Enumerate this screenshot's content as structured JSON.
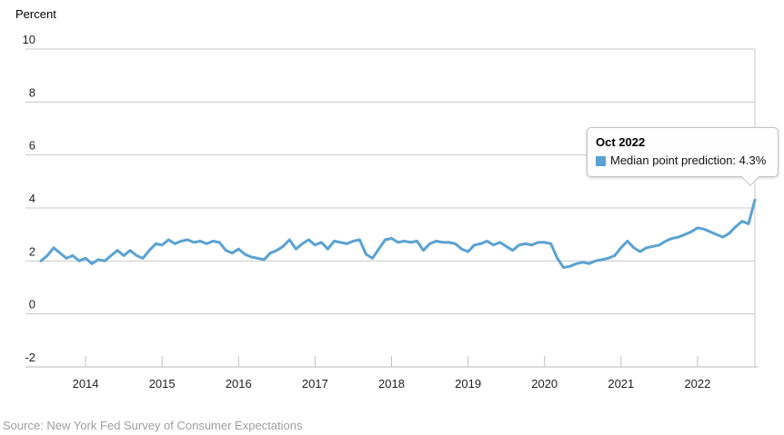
{
  "y_axis_title": "Percent",
  "source_text": "Source: New York Fed Survey of Consumer Expectations",
  "tooltip": {
    "title": "Oct 2022",
    "text": "Median point prediction: 4.3%",
    "series_label": "Median point prediction",
    "value": "4.3%",
    "marker_color": "#5AA2D3"
  },
  "colors": {
    "line": "#5AA2D3",
    "grid": "#c9c9c9",
    "axis": "#b5b5b5",
    "tick": "#c2c2c2",
    "label_text": "#1f1f1f",
    "source_text": "#9e9e9e",
    "tooltip_border": "#c3c3c3",
    "tooltip_bg": "#fefefe"
  },
  "chart_data": {
    "type": "line",
    "title": "",
    "ylabel": "Percent",
    "grid": "horizontal",
    "legend_position": "tooltip",
    "y_axis": {
      "min": -2,
      "max": 10,
      "ticks": [
        10,
        8,
        6,
        4,
        2,
        0,
        -2
      ]
    },
    "x_axis": {
      "tick_labels": [
        "2014",
        "2015",
        "2016",
        "2017",
        "2018",
        "2019",
        "2020",
        "2021",
        "2022"
      ],
      "start": "Jun 2013",
      "end": "Oct 2022",
      "frequency": "monthly"
    },
    "series": [
      {
        "name": "Median point prediction",
        "color": "#5AA2D3",
        "highlight": {
          "month": "Oct 2022",
          "value": 4.3
        },
        "values": [
          2.0,
          2.2,
          2.5,
          2.3,
          2.1,
          2.2,
          2.0,
          2.1,
          1.9,
          2.05,
          2.0,
          2.2,
          2.4,
          2.2,
          2.4,
          2.2,
          2.1,
          2.4,
          2.65,
          2.6,
          2.8,
          2.65,
          2.75,
          2.8,
          2.7,
          2.75,
          2.65,
          2.75,
          2.7,
          2.4,
          2.3,
          2.45,
          2.25,
          2.15,
          2.1,
          2.05,
          2.3,
          2.4,
          2.55,
          2.8,
          2.45,
          2.65,
          2.8,
          2.6,
          2.7,
          2.45,
          2.75,
          2.7,
          2.65,
          2.75,
          2.8,
          2.25,
          2.1,
          2.45,
          2.8,
          2.85,
          2.7,
          2.75,
          2.7,
          2.75,
          2.4,
          2.65,
          2.75,
          2.7,
          2.7,
          2.65,
          2.45,
          2.35,
          2.6,
          2.65,
          2.75,
          2.6,
          2.7,
          2.55,
          2.4,
          2.6,
          2.65,
          2.6,
          2.7,
          2.7,
          2.65,
          2.1,
          1.75,
          1.8,
          1.9,
          1.95,
          1.9,
          2.0,
          2.05,
          2.1,
          2.2,
          2.5,
          2.75,
          2.5,
          2.35,
          2.5,
          2.55,
          2.6,
          2.75,
          2.85,
          2.9,
          3.0,
          3.1,
          3.25,
          3.2,
          3.1,
          3.0,
          2.9,
          3.05,
          3.3,
          3.5,
          3.4,
          4.3
        ]
      }
    ]
  }
}
